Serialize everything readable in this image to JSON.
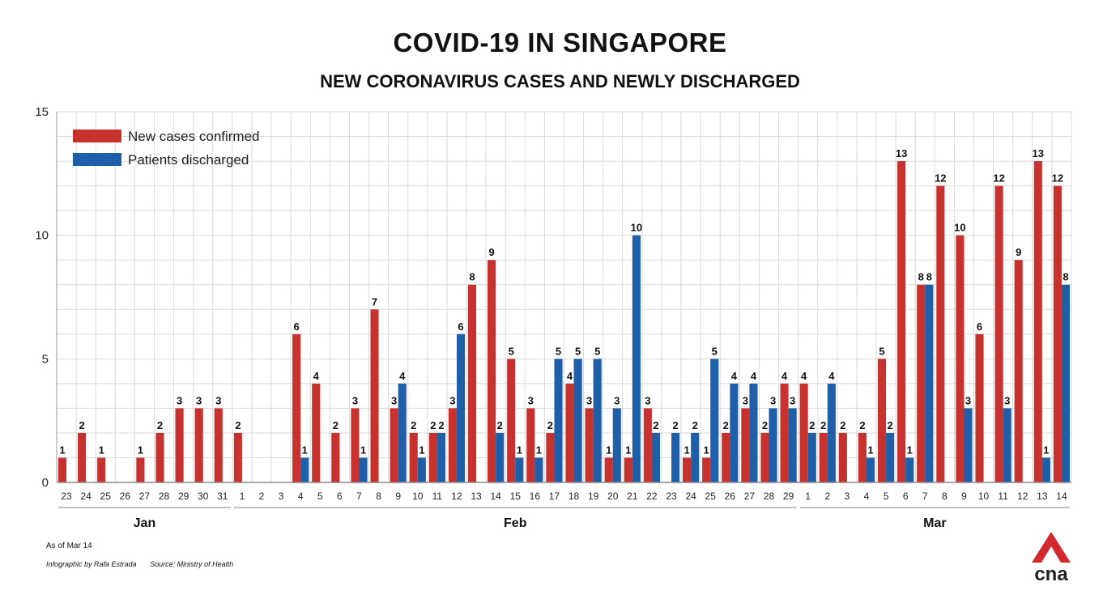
{
  "title": "COVID-19 IN SINGAPORE",
  "subtitle": "NEW CORONAVIRUS CASES AND NEWLY DISCHARGED",
  "footnote": {
    "as_of": "As of Mar 14",
    "credit": "Infographic by Rafa Estrada",
    "source": "Source: Ministry of Health"
  },
  "logo_text": "cna",
  "colors": {
    "new_cases": "#c8322e",
    "discharged": "#1f5ea8",
    "grid": "#d9d9d9",
    "logo": "#d2282e"
  },
  "chart_data": {
    "type": "bar",
    "title": "COVID-19 IN SINGAPORE",
    "subtitle": "NEW CORONAVIRUS CASES AND NEWLY DISCHARGED",
    "xlabel": "",
    "ylabel": "",
    "ylim": [
      0,
      15
    ],
    "yticks": [
      0,
      5,
      10,
      15
    ],
    "grid": true,
    "legend": "top-left",
    "months": [
      {
        "name": "Jan",
        "start": 0,
        "end": 8
      },
      {
        "name": "Feb",
        "start": 9,
        "end": 37
      },
      {
        "name": "Mar",
        "start": 38,
        "end": 51
      }
    ],
    "categories": [
      "23",
      "24",
      "25",
      "26",
      "27",
      "28",
      "29",
      "30",
      "31",
      "1",
      "2",
      "3",
      "4",
      "5",
      "6",
      "7",
      "8",
      "9",
      "10",
      "11",
      "12",
      "13",
      "14",
      "15",
      "16",
      "17",
      "18",
      "19",
      "20",
      "21",
      "22",
      "23",
      "24",
      "25",
      "26",
      "27",
      "28",
      "29",
      "1",
      "2",
      "3",
      "4",
      "5",
      "6",
      "7",
      "8",
      "9",
      "10",
      "11",
      "12",
      "13",
      "14"
    ],
    "series": [
      {
        "name": "New cases confirmed",
        "color": "#c8322e",
        "values": [
          1,
          2,
          1,
          0,
          1,
          2,
          3,
          3,
          3,
          2,
          0,
          0,
          6,
          4,
          2,
          3,
          7,
          3,
          2,
          2,
          3,
          8,
          9,
          5,
          3,
          2,
          4,
          3,
          1,
          1,
          3,
          0,
          1,
          1,
          2,
          3,
          2,
          4,
          4,
          2,
          2,
          2,
          5,
          13,
          8,
          12,
          10,
          6,
          12,
          9,
          13,
          12
        ]
      },
      {
        "name": "Patients discharged",
        "color": "#1f5ea8",
        "values": [
          0,
          0,
          0,
          0,
          0,
          0,
          0,
          0,
          0,
          0,
          0,
          0,
          1,
          0,
          0,
          1,
          0,
          4,
          1,
          2,
          6,
          0,
          2,
          1,
          1,
          5,
          5,
          5,
          3,
          10,
          2,
          2,
          2,
          5,
          4,
          4,
          3,
          3,
          2,
          4,
          0,
          1,
          2,
          1,
          8,
          0,
          3,
          0,
          3,
          0,
          1,
          8
        ]
      }
    ]
  }
}
